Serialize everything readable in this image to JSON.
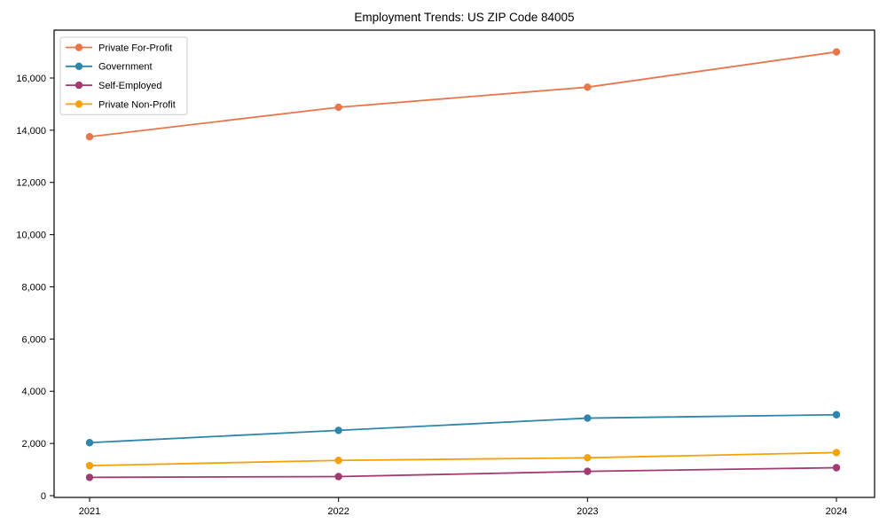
{
  "figure": {
    "background": "#ffffff"
  },
  "chart_data": {
    "type": "line",
    "title": "Employment Trends: US ZIP Code 84005",
    "xlabel": "",
    "ylabel": "",
    "categories": [
      "2021",
      "2022",
      "2023",
      "2024"
    ],
    "series": [
      {
        "name": "Private For-Profit",
        "color": "#E8764B",
        "values": [
          13750,
          14880,
          15650,
          17000
        ]
      },
      {
        "name": "Government",
        "color": "#2E86AB",
        "values": [
          2030,
          2500,
          2970,
          3100
        ]
      },
      {
        "name": "Self-Employed",
        "color": "#A23B72",
        "values": [
          700,
          730,
          930,
          1070
        ]
      },
      {
        "name": "Private Non-Profit",
        "color": "#F5A10B",
        "values": [
          1150,
          1350,
          1450,
          1650
        ]
      }
    ],
    "ylim": [
      -68,
      17834
    ],
    "yticks": [
      0,
      2000,
      4000,
      6000,
      8000,
      10000,
      12000,
      14000,
      16000
    ],
    "ytick_labels": [
      "0",
      "2,000",
      "4,000",
      "6,000",
      "8,000",
      "10,000",
      "12,000",
      "14,000",
      "16,000"
    ],
    "grid": false,
    "marker": "circle",
    "legend": {
      "position": "upper-left",
      "entries": [
        "Private For-Profit",
        "Government",
        "Self-Employed",
        "Private Non-Profit"
      ]
    },
    "axis_color": "#000000",
    "legend_border_color": "#cccccc",
    "legend_background": "#ffffff"
  }
}
